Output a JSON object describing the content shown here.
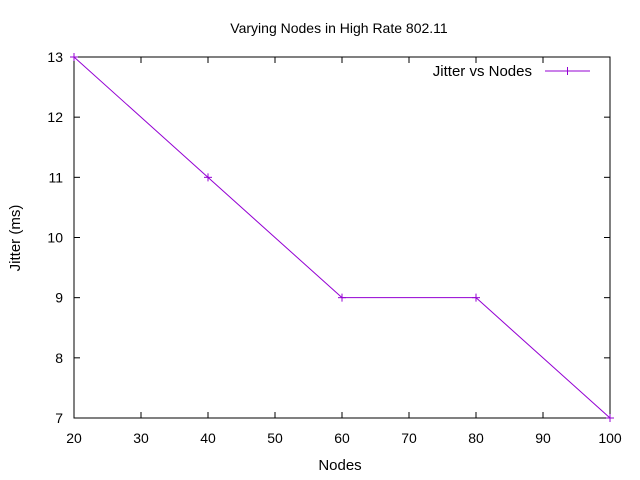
{
  "chart_data": {
    "type": "line",
    "title": "Varying Nodes in High Rate 802.11",
    "xlabel": "Nodes",
    "ylabel": "Jitter (ms)",
    "xlim": [
      20,
      100
    ],
    "ylim": [
      7,
      13
    ],
    "xticks": [
      20,
      30,
      40,
      50,
      60,
      70,
      80,
      90,
      100
    ],
    "yticks": [
      7,
      8,
      9,
      10,
      11,
      12,
      13
    ],
    "grid": false,
    "legend_position": "top-right",
    "series": [
      {
        "name": "Jitter vs Nodes",
        "color": "#9400d3",
        "marker": "plus",
        "x": [
          20,
          40,
          60,
          80,
          100
        ],
        "y": [
          13,
          11,
          9,
          9,
          7
        ]
      }
    ]
  }
}
